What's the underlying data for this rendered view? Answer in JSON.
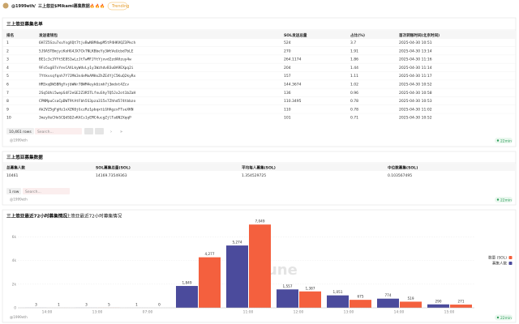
{
  "header": {
    "user": "@1999eth",
    "separator": "/",
    "title": "三上悠亚$Mikami募集数据🔥🔥🔥",
    "badge": "Trending"
  },
  "table1": {
    "title": "三上悠亚募集名单",
    "columns": [
      "排名",
      "发送者钱包",
      "SOL发送总量",
      "占比(%)",
      "首次转账时间(北京时间)"
    ],
    "rows": [
      [
        1,
        "6H7Z5Szu7xuYsgXQt7tjvBwN8M4wpM5tP4HKVQZ3Pkch",
        524,
        3.7,
        "2025-04-30 10:51"
      ],
      [
        2,
        "5J9ASTBmjyiKoHG4JX7CkTNLKBbeYy3WtVeUcbd7bLE",
        270,
        1.91,
        "2025-04-30 13:14"
      ],
      [
        3,
        "BE1c3c3YYtSE8S1wLzJtTwMFJYtYjxvd2zdAHzuy4w",
        264.1174,
        1.86,
        "2025-04-30 11:16"
      ],
      [
        4,
        "9Fo5ug87vYevCAXLkyWdvLy1y1WzhdvB3u0A9EXpq2i",
        204,
        1.44,
        "2025-04-30 11:14"
      ],
      [
        5,
        "7Ytkvsqfqnh7Y7JMk3n4eMoAMHxZhZE4YjC5KuQ2kyRx",
        157,
        1.11,
        "2025-04-30 11:17"
      ],
      [
        6,
        "HM3xqDW5BRgYvjbWWr7BWM4eyk6imh7j3mdxt4Zcv",
        144.3674,
        1.02,
        "2025-04-30 10:52"
      ],
      [
        7,
        "2Sq5Uhi5wepS4F2eGE2Z3R5TLfnuShyTQ5Jx2ot1bZaH",
        136,
        0.96,
        "2025-04-30 10:58"
      ],
      [
        8,
        "CPNMpuCsaCpDWT9tAtFbh5S3pza315x7Zhhd574tbbzo",
        110.3495,
        0.78,
        "2025-04-30 10:53"
      ],
      [
        9,
        "Ak2VZ5gFgHz1xXZK0jGczRz1pbqxtLGHAgzxFTseXKN",
        110,
        0.78,
        "2025-04-30 11:02"
      ],
      [
        10,
        "3mzyXeCHoSCQdSQ2vKACs1yEMC4ucgZjlTa6N2XqqP",
        101,
        0.71,
        "2025-04-30 10:52"
      ]
    ],
    "row_count": "10,461 rows",
    "search": "Search...",
    "credit": "@1999eth",
    "age": "22min"
  },
  "table2": {
    "title": "三上悠亚募集数据",
    "columns": [
      "总募集人数",
      "SOL募集总量(SOL)",
      "平均每人募集(SOL)",
      "中位数募集(SOL)"
    ],
    "rows": [
      [
        10461,
        14169.73549363,
        1.354529725,
        0.103567495
      ]
    ],
    "row_count": "1 row",
    "search": "Search...",
    "credit": "@1999eth",
    "age": "22min"
  },
  "chart_data": {
    "type": "bar",
    "title": "三上悠亚最近72小时募集情况",
    "subtitle": "三上悠亚最近72小时募集情况",
    "categories": [
      "14:00",
      "13:00",
      "07:00",
      null,
      "11:00",
      "12:00",
      "13:00",
      "14:00",
      "15:00"
    ],
    "series": [
      {
        "name": "募集人数",
        "color": "#4b4b9c",
        "values": [
          3,
          3,
          1,
          1849,
          5274,
          1557,
          1051,
          774,
          290
        ],
        "value_labels": [
          "3",
          "3",
          "1",
          "1,849",
          "5,274",
          "1,557",
          "1,051",
          "774",
          "290"
        ]
      },
      {
        "name": "数量 (SOL)",
        "color": "#f4603e",
        "values": [
          1,
          5,
          0,
          4277,
          7049,
          1387,
          675,
          519,
          271
        ],
        "value_labels": [
          "1",
          "5",
          "0",
          "4,277",
          "7,049",
          "1,387",
          "675",
          "519",
          "271"
        ]
      }
    ],
    "ylim": [
      0,
      7200
    ],
    "yticks": [
      0,
      {
        "value": 2000,
        "label": "2k"
      },
      {
        "value": 4000,
        "label": "4k"
      },
      {
        "value": 6000,
        "label": "6k"
      }
    ],
    "grid": true,
    "legend": "right",
    "watermark": "Dune",
    "credit": "@1999eth",
    "age": "22min"
  }
}
